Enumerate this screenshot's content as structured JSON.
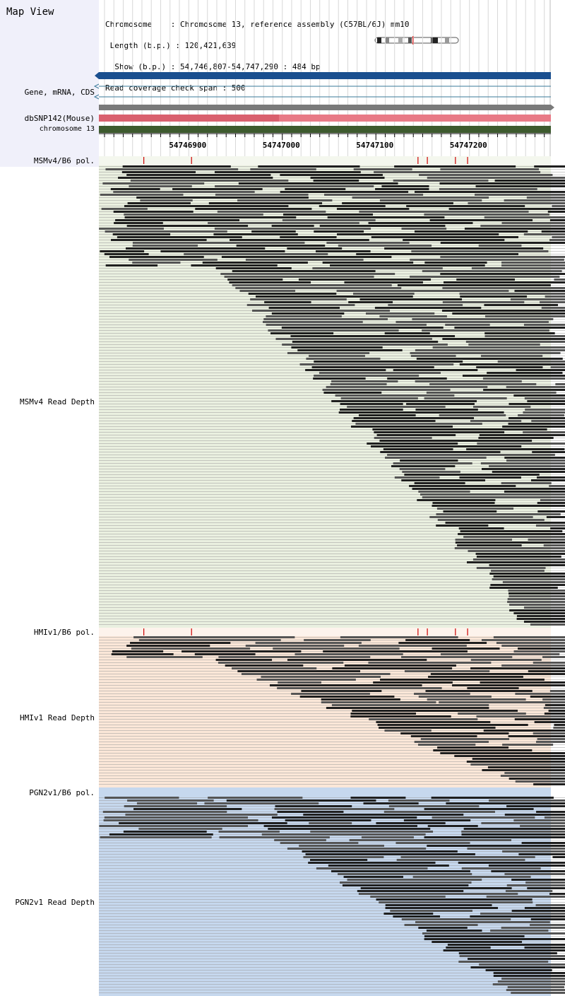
{
  "title": "Map View",
  "header": {
    "lines": [
      "Chromosome    : Chromosome 13, reference assembly (C57BL/6J) mm10",
      " Length (b.p.) : 120,421,639",
      "  Show (b.p.) : 54,746,807-54,747,290 : 484 bp",
      "Read coverage check span : 500"
    ]
  },
  "tracks": {
    "gene": "Gene, mRNA, CDS",
    "dbsnp": "dbSNP142(Mouse)",
    "chrom": "chromosome 13",
    "msm_pol": "MSMv4/B6 pol.",
    "msm_depth": "MSMv4 Read Depth",
    "hmi_pol": "HMIv1/B6 pol.",
    "hmi_depth": "HMIv1 Read Depth",
    "pgn_pol": "PGN2v1/B6 pol.",
    "pgn_depth": "PGN2v1 Read Depth"
  },
  "ruler": {
    "labels": [
      "54746900",
      "54747000",
      "54747100",
      "54747200"
    ],
    "start": 54746807,
    "end": 54747290
  },
  "colors": {
    "gene_bar": "#1a4f8f",
    "dbsnp_bar": "#e87a86",
    "chrom_bar": "#3d5a2e",
    "msm_bg": "#eaf0e0",
    "hmi_bg": "#fbe7d8",
    "pgn_bg": "#c6d8ee",
    "pol_mark": "#cc0000"
  },
  "polymorphisms": [
    54746852,
    54746903,
    54747145,
    54747155,
    54747185,
    54747198
  ]
}
